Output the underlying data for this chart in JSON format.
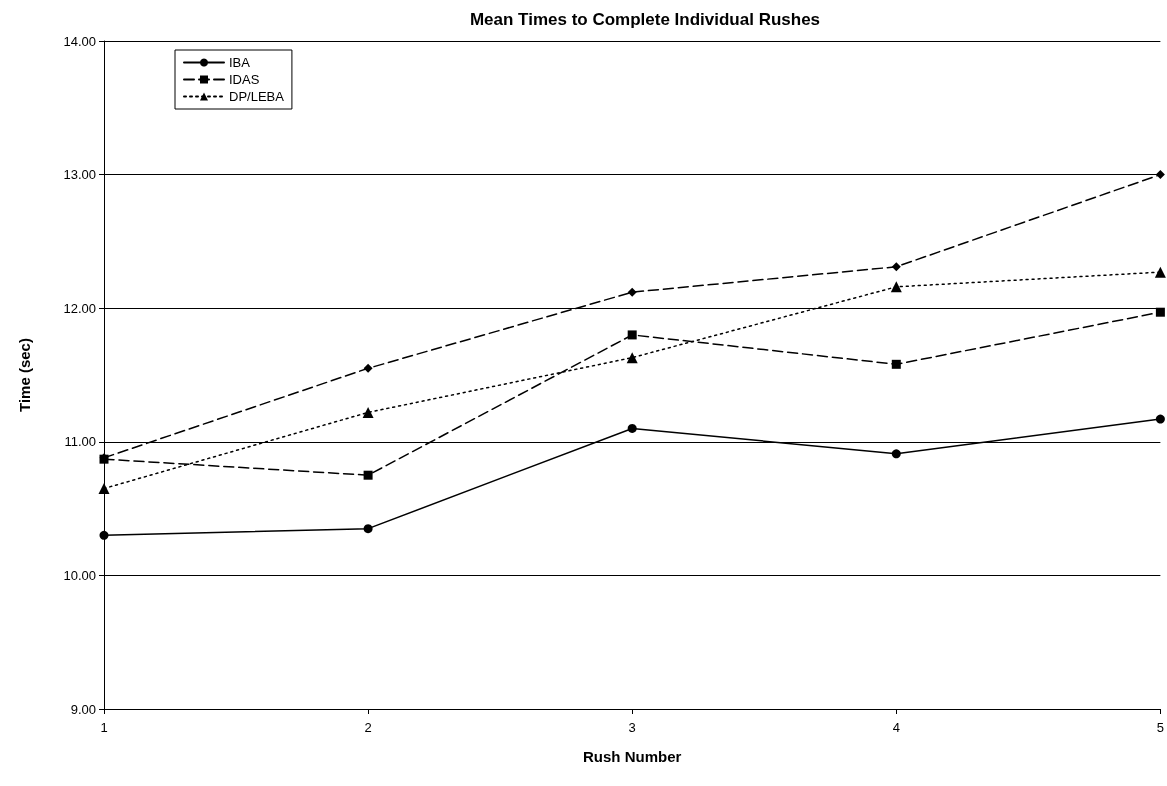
{
  "chart_data": {
    "type": "line",
    "title": "Mean Times to Complete Individual Rushes",
    "xlabel": "Rush Number",
    "ylabel": "Time (sec)",
    "categories": [
      "1",
      "2",
      "3",
      "4",
      "5"
    ],
    "ylim": [
      9,
      14
    ],
    "yticks": [
      {
        "value": 9,
        "label": "9.00"
      },
      {
        "value": 10,
        "label": "10.00"
      },
      {
        "value": 11,
        "label": "11.00"
      },
      {
        "value": 12,
        "label": "12.00"
      },
      {
        "value": 13,
        "label": "13.00"
      },
      {
        "value": 14,
        "label": "14.00"
      }
    ],
    "grid": "y",
    "legend": "top left",
    "series": [
      {
        "name": "IBA",
        "color": "#000000",
        "marker": "circle",
        "line_style": "solid",
        "values": [
          10.3,
          10.35,
          11.1,
          10.91,
          11.17
        ]
      },
      {
        "name": "IDAS",
        "color": "#000000",
        "marker": "square",
        "line_style": "dashed",
        "values": [
          10.87,
          10.75,
          11.8,
          11.58,
          11.97
        ]
      },
      {
        "name": "DP/LEBA",
        "color": "#000000",
        "marker": "triangle",
        "line_style": "dotted",
        "values": [
          10.65,
          11.22,
          11.63,
          12.16,
          12.27
        ]
      },
      {
        "color": "#000000",
        "marker": "diamond",
        "line_style": "dashed",
        "values": [
          10.88,
          11.55,
          12.12,
          12.31,
          13.0
        ]
      }
    ]
  }
}
